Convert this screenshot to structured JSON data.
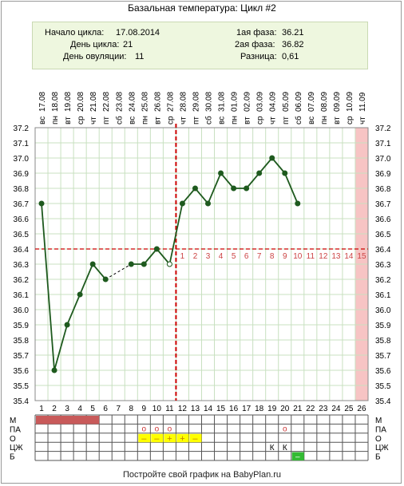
{
  "title": "Базальная температура: Цикл #2",
  "info": {
    "cycle_start_label": "Начало цикла:",
    "cycle_start": "17.08.2014",
    "cycle_day_label": "День цикла:",
    "cycle_day": "21",
    "ovulation_day_label": "День овуляции:",
    "ovulation_day": "11",
    "phase1_label": "1ая фаза:",
    "phase1": "36.21",
    "phase2_label": "2ая фаза:",
    "phase2": "36.82",
    "difference_label": "Разница:",
    "difference": "0,61"
  },
  "footer": "Постройте свой график на BabyPlan.ru",
  "colors": {
    "line": "#1e5a1e",
    "cover_line": "#cc0000",
    "ovulation_line": "#cc0000",
    "luteal_numbers": "#cc4444",
    "highlight_column": "#f7c4c4",
    "grid": "#c8e0c0",
    "period_bar": "#c85a5a",
    "mucus_marks": "#ffff00",
    "last_row_mark": "#33bb33"
  },
  "chart_data": {
    "type": "line",
    "title": "Базальная температура: Цикл #2",
    "weekdays": [
      "вс",
      "пн",
      "вт",
      "ср",
      "чт",
      "пт",
      "сб",
      "вс",
      "пн",
      "вт",
      "ср",
      "чт",
      "пт",
      "сб",
      "вс",
      "пн",
      "вт",
      "ср",
      "чт",
      "пт",
      "сб",
      "вс",
      "пн",
      "вт",
      "ср",
      "чт"
    ],
    "dates": [
      "17.08",
      "18.08",
      "19.08",
      "20.08",
      "21.08",
      "22.08",
      "23.08",
      "24.08",
      "25.08",
      "26.08",
      "27.08",
      "28.08",
      "29.08",
      "30.08",
      "31.08",
      "01.09",
      "02.09",
      "03.09",
      "04.09",
      "05.09",
      "06.09",
      "07.09",
      "08.09",
      "09.09",
      "10.09",
      "11.09"
    ],
    "days": [
      1,
      2,
      3,
      4,
      5,
      6,
      7,
      8,
      9,
      10,
      11,
      12,
      13,
      14,
      15,
      16,
      17,
      18,
      19,
      20,
      21,
      22,
      23,
      24,
      25,
      26
    ],
    "temperatures": [
      36.7,
      35.6,
      35.9,
      36.1,
      36.3,
      36.2,
      null,
      36.3,
      36.3,
      36.4,
      36.3,
      36.7,
      36.8,
      36.7,
      36.9,
      36.8,
      36.8,
      36.9,
      37.0,
      36.9,
      36.7,
      null,
      null,
      null,
      null,
      null
    ],
    "ylim": [
      35.4,
      37.2
    ],
    "y_ticks": [
      35.4,
      35.5,
      35.6,
      35.7,
      35.8,
      35.9,
      36.0,
      36.1,
      36.2,
      36.3,
      36.4,
      36.5,
      36.6,
      36.7,
      36.8,
      36.9,
      37.0,
      37.1,
      37.2
    ],
    "cover_line": 36.4,
    "ovulation_day": 11,
    "luteal_day_numbers": [
      "1",
      "2",
      "3",
      "4",
      "5",
      "6",
      "7",
      "8",
      "9",
      "10",
      "11",
      "12",
      "13",
      "14",
      "15"
    ],
    "highlight_day": 26,
    "grid": true
  },
  "symptoms": {
    "row_labels": [
      "М",
      "ПА",
      "О",
      "ЦЖ",
      "Б"
    ],
    "menstruation_days": [
      1,
      2,
      3,
      4,
      5
    ],
    "pa_marks": [
      {
        "day": 9,
        "text": "o"
      },
      {
        "day": 10,
        "text": "o"
      },
      {
        "day": 11,
        "text": "o"
      },
      {
        "day": 20,
        "text": "o"
      }
    ],
    "o_marks": [
      {
        "day": 9,
        "text": "–"
      },
      {
        "day": 10,
        "text": "–"
      },
      {
        "day": 11,
        "text": "+"
      },
      {
        "day": 12,
        "text": "+"
      },
      {
        "day": 13,
        "text": "–"
      }
    ],
    "cz_marks": [
      {
        "day": 19,
        "text": "К"
      },
      {
        "day": 20,
        "text": "К"
      }
    ],
    "b_marks": [
      {
        "day": 21,
        "text": "–"
      }
    ]
  }
}
